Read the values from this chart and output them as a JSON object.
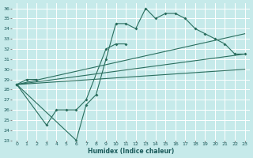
{
  "xlabel": "Humidex (Indice chaleur)",
  "bg_color": "#c6eaea",
  "grid_color": "#ffffff",
  "line_color": "#2a6e5e",
  "xlim": [
    -0.5,
    23.5
  ],
  "ylim": [
    23,
    36.5
  ],
  "xticks": [
    0,
    1,
    2,
    3,
    4,
    5,
    6,
    7,
    8,
    9,
    10,
    11,
    12,
    13,
    14,
    15,
    16,
    17,
    18,
    19,
    20,
    21,
    22,
    23
  ],
  "yticks": [
    23,
    24,
    25,
    26,
    27,
    28,
    29,
    30,
    31,
    32,
    33,
    34,
    35,
    36
  ],
  "line1_x": [
    0,
    1,
    2
  ],
  "line1_y": [
    28.5,
    29.0,
    29.0
  ],
  "line2_x": [
    0,
    3,
    4,
    5,
    6,
    7,
    9,
    10,
    11
  ],
  "line2_y": [
    28.5,
    24.5,
    26.0,
    26.0,
    26.0,
    27.0,
    32.0,
    32.5,
    32.5
  ],
  "line3_x": [
    0,
    6,
    7,
    8,
    9,
    10,
    11,
    12,
    13,
    14,
    15,
    16,
    17,
    18,
    19,
    20,
    21,
    22,
    23
  ],
  "line3_y": [
    28.5,
    23.0,
    26.5,
    27.5,
    31.0,
    34.5,
    34.5,
    34.0,
    36.0,
    35.0,
    35.5,
    35.5,
    35.0,
    34.0,
    33.5,
    33.0,
    32.5,
    31.5,
    31.5
  ],
  "straight_lines": [
    {
      "x": [
        0,
        23
      ],
      "y": [
        28.5,
        33.5
      ]
    },
    {
      "x": [
        0,
        23
      ],
      "y": [
        28.5,
        31.5
      ]
    },
    {
      "x": [
        0,
        23
      ],
      "y": [
        28.5,
        30.0
      ]
    }
  ]
}
